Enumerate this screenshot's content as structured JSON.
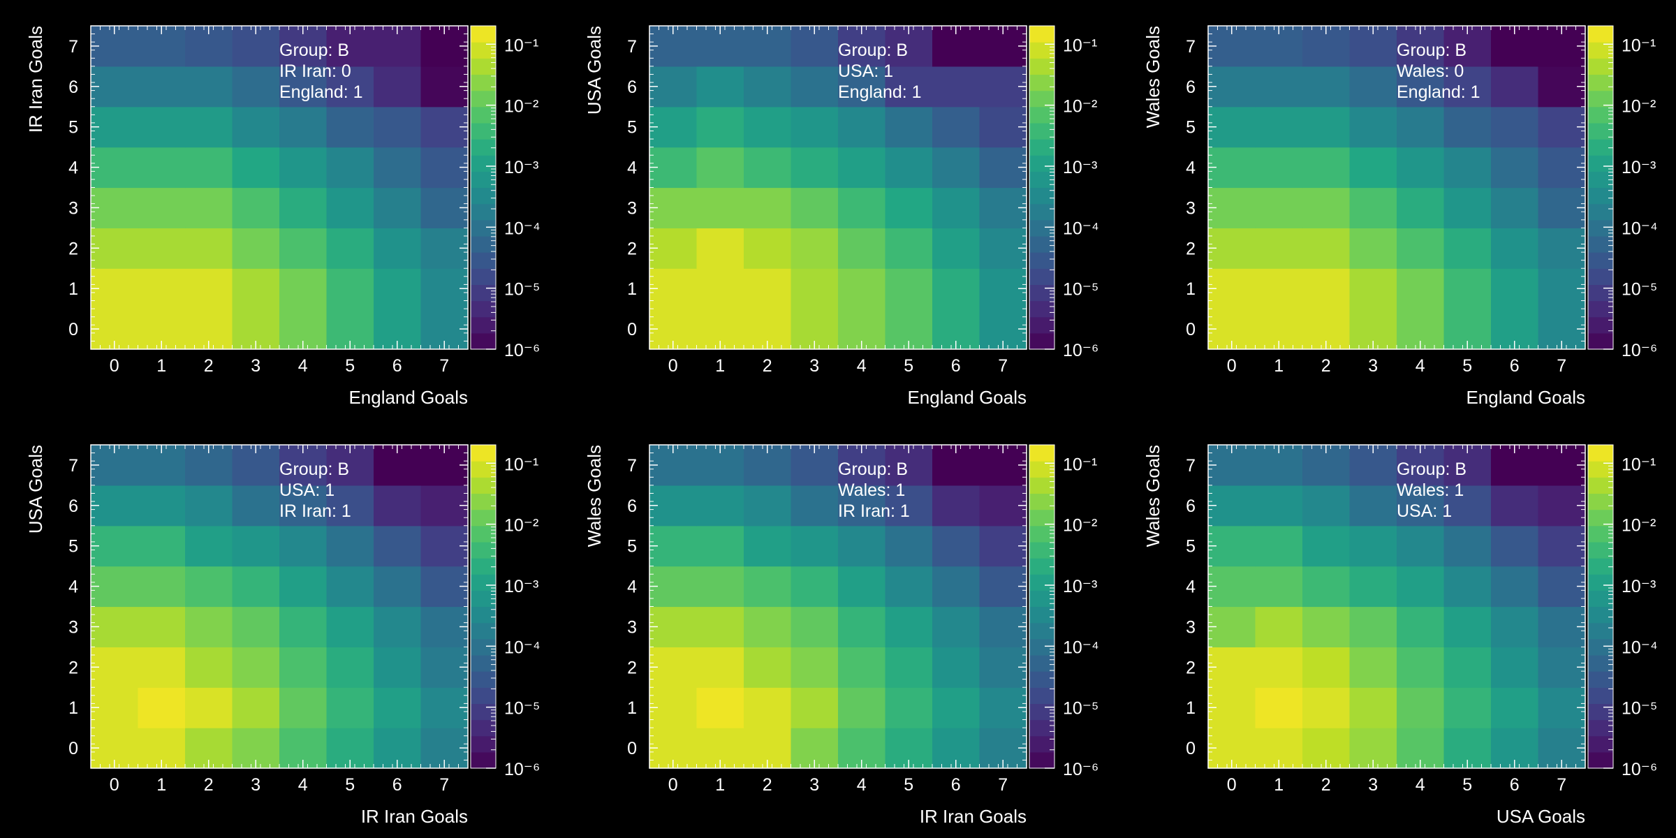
{
  "colors": {
    "background": "#000000",
    "text": "#ffffff",
    "colormap": "viridis"
  },
  "chart_data": [
    {
      "type": "heatmap",
      "xlabel": "England Goals",
      "ylabel": "IR Iran Goals",
      "x": [
        0,
        1,
        2,
        3,
        4,
        5,
        6,
        7
      ],
      "y": [
        0,
        1,
        2,
        3,
        4,
        5,
        6,
        7
      ],
      "xlim": [
        -0.5,
        7.5
      ],
      "ylim": [
        -0.5,
        7.5
      ],
      "x_tick_labels": [
        "0",
        "1",
        "2",
        "3",
        "4",
        "5",
        "6",
        "7"
      ],
      "y_tick_labels": [
        "0",
        "1",
        "2",
        "3",
        "4",
        "5",
        "6",
        "7"
      ],
      "color_scale": "log",
      "zlim": [
        1e-06,
        0.2
      ],
      "colorbar_tick_labels": [
        "10⁻⁶",
        "10⁻⁵",
        "10⁻⁴",
        "10⁻³",
        "10⁻²",
        "10⁻¹"
      ],
      "annotation": [
        "Group: B",
        "IR Iran: 0",
        "England: 1"
      ],
      "z": [
        [
          0.1,
          0.1,
          0.1,
          0.04,
          0.015,
          0.004,
          0.001,
          0.0003
        ],
        [
          0.1,
          0.1,
          0.1,
          0.04,
          0.015,
          0.004,
          0.001,
          0.0003
        ],
        [
          0.04,
          0.04,
          0.04,
          0.015,
          0.006,
          0.002,
          0.0005,
          0.0002
        ],
        [
          0.015,
          0.015,
          0.015,
          0.006,
          0.002,
          0.0006,
          0.0002,
          6e-05
        ],
        [
          0.004,
          0.004,
          0.004,
          0.0015,
          0.0006,
          0.00025,
          8e-05,
          3e-05
        ],
        [
          0.0008,
          0.0008,
          0.0008,
          0.0003,
          0.00015,
          5e-05,
          3e-05,
          1.2e-05
        ],
        [
          0.00015,
          0.00015,
          0.00015,
          8e-05,
          3e-05,
          1.2e-05,
          5e-06,
          1.2e-06
        ],
        [
          4e-05,
          4e-05,
          3e-05,
          2e-05,
          8e-06,
          3e-06,
          3e-06,
          1e-06
        ]
      ]
    },
    {
      "type": "heatmap",
      "xlabel": "England Goals",
      "ylabel": "USA Goals",
      "x": [
        0,
        1,
        2,
        3,
        4,
        5,
        6,
        7
      ],
      "y": [
        0,
        1,
        2,
        3,
        4,
        5,
        6,
        7
      ],
      "xlim": [
        -0.5,
        7.5
      ],
      "ylim": [
        -0.5,
        7.5
      ],
      "x_tick_labels": [
        "0",
        "1",
        "2",
        "3",
        "4",
        "5",
        "6",
        "7"
      ],
      "y_tick_labels": [
        "0",
        "1",
        "2",
        "3",
        "4",
        "5",
        "6",
        "7"
      ],
      "color_scale": "log",
      "zlim": [
        1e-06,
        0.2
      ],
      "colorbar_tick_labels": [
        "10⁻⁶",
        "10⁻⁵",
        "10⁻⁴",
        "10⁻³",
        "10⁻²",
        "10⁻¹"
      ],
      "annotation": [
        "Group: B",
        "USA: 1",
        "England: 1"
      ],
      "z": [
        [
          0.1,
          0.1,
          0.1,
          0.04,
          0.02,
          0.008,
          0.002,
          0.0005
        ],
        [
          0.1,
          0.1,
          0.1,
          0.04,
          0.02,
          0.008,
          0.002,
          0.0005
        ],
        [
          0.05,
          0.1,
          0.05,
          0.03,
          0.01,
          0.004,
          0.001,
          0.0003
        ],
        [
          0.02,
          0.02,
          0.02,
          0.01,
          0.004,
          0.0015,
          0.0005,
          0.00015
        ],
        [
          0.004,
          0.008,
          0.004,
          0.002,
          0.001,
          0.0004,
          0.00015,
          5e-05
        ],
        [
          0.001,
          0.002,
          0.001,
          0.0006,
          0.0003,
          0.0001,
          4e-05,
          1.5e-05
        ],
        [
          0.0002,
          0.0004,
          0.0002,
          0.0001,
          5e-05,
          1e-05,
          1e-05,
          1e-05
        ],
        [
          5e-05,
          5e-05,
          5e-05,
          3e-05,
          1e-05,
          5e-06,
          1e-06,
          1e-06
        ]
      ]
    },
    {
      "type": "heatmap",
      "xlabel": "England Goals",
      "ylabel": "Wales Goals",
      "x": [
        0,
        1,
        2,
        3,
        4,
        5,
        6,
        7
      ],
      "y": [
        0,
        1,
        2,
        3,
        4,
        5,
        6,
        7
      ],
      "xlim": [
        -0.5,
        7.5
      ],
      "ylim": [
        -0.5,
        7.5
      ],
      "x_tick_labels": [
        "0",
        "1",
        "2",
        "3",
        "4",
        "5",
        "6",
        "7"
      ],
      "y_tick_labels": [
        "0",
        "1",
        "2",
        "3",
        "4",
        "5",
        "6",
        "7"
      ],
      "color_scale": "log",
      "zlim": [
        1e-06,
        0.2
      ],
      "colorbar_tick_labels": [
        "10⁻⁶",
        "10⁻⁵",
        "10⁻⁴",
        "10⁻³",
        "10⁻²",
        "10⁻¹"
      ],
      "annotation": [
        "Group: B",
        "Wales: 0",
        "England: 1"
      ],
      "z": [
        [
          0.1,
          0.1,
          0.1,
          0.04,
          0.015,
          0.004,
          0.001,
          0.0003
        ],
        [
          0.1,
          0.1,
          0.1,
          0.04,
          0.015,
          0.004,
          0.001,
          0.0003
        ],
        [
          0.04,
          0.04,
          0.04,
          0.015,
          0.006,
          0.002,
          0.0005,
          0.0002
        ],
        [
          0.015,
          0.015,
          0.015,
          0.006,
          0.002,
          0.0006,
          0.0002,
          6e-05
        ],
        [
          0.004,
          0.004,
          0.004,
          0.0015,
          0.0006,
          0.00025,
          8e-05,
          3e-05
        ],
        [
          0.0008,
          0.0008,
          0.0008,
          0.0003,
          0.00015,
          5e-05,
          3e-05,
          1.2e-05
        ],
        [
          0.00015,
          0.00015,
          0.00015,
          8e-05,
          3e-05,
          1.2e-05,
          5e-06,
          1.2e-06
        ],
        [
          4e-05,
          4e-05,
          3e-05,
          2e-05,
          8e-06,
          3e-06,
          1e-06,
          1e-06
        ]
      ]
    },
    {
      "type": "heatmap",
      "xlabel": "IR Iran Goals",
      "ylabel": "USA Goals",
      "x": [
        0,
        1,
        2,
        3,
        4,
        5,
        6,
        7
      ],
      "y": [
        0,
        1,
        2,
        3,
        4,
        5,
        6,
        7
      ],
      "xlim": [
        -0.5,
        7.5
      ],
      "ylim": [
        -0.5,
        7.5
      ],
      "x_tick_labels": [
        "0",
        "1",
        "2",
        "3",
        "4",
        "5",
        "6",
        "7"
      ],
      "y_tick_labels": [
        "0",
        "1",
        "2",
        "3",
        "4",
        "5",
        "6",
        "7"
      ],
      "color_scale": "log",
      "zlim": [
        1e-06,
        0.2
      ],
      "colorbar_tick_labels": [
        "10⁻⁶",
        "10⁻⁵",
        "10⁻⁴",
        "10⁻³",
        "10⁻²",
        "10⁻¹"
      ],
      "annotation": [
        "Group: B",
        "USA: 1",
        "IR Iran: 1"
      ],
      "z": [
        [
          0.1,
          0.1,
          0.04,
          0.02,
          0.006,
          0.002,
          0.0006,
          0.0002
        ],
        [
          0.1,
          0.15,
          0.1,
          0.04,
          0.01,
          0.003,
          0.001,
          0.0003
        ],
        [
          0.1,
          0.1,
          0.04,
          0.02,
          0.006,
          0.002,
          0.0005,
          0.00015
        ],
        [
          0.04,
          0.04,
          0.02,
          0.01,
          0.003,
          0.001,
          0.0003,
          0.0001
        ],
        [
          0.01,
          0.01,
          0.006,
          0.003,
          0.001,
          0.0003,
          0.0001,
          3e-05
        ],
        [
          0.003,
          0.003,
          0.001,
          0.0006,
          0.0003,
          0.0001,
          3e-05,
          1e-05
        ],
        [
          0.0005,
          0.0005,
          0.0003,
          0.0001,
          5e-05,
          2e-05,
          5e-06,
          3e-06
        ],
        [
          0.0001,
          0.0001,
          6e-05,
          3e-05,
          1e-05,
          5e-06,
          1e-06,
          1e-06
        ]
      ]
    },
    {
      "type": "heatmap",
      "xlabel": "IR Iran Goals",
      "ylabel": "Wales Goals",
      "x": [
        0,
        1,
        2,
        3,
        4,
        5,
        6,
        7
      ],
      "y": [
        0,
        1,
        2,
        3,
        4,
        5,
        6,
        7
      ],
      "xlim": [
        -0.5,
        7.5
      ],
      "ylim": [
        -0.5,
        7.5
      ],
      "x_tick_labels": [
        "0",
        "1",
        "2",
        "3",
        "4",
        "5",
        "6",
        "7"
      ],
      "y_tick_labels": [
        "0",
        "1",
        "2",
        "3",
        "4",
        "5",
        "6",
        "7"
      ],
      "color_scale": "log",
      "zlim": [
        1e-06,
        0.2
      ],
      "colorbar_tick_labels": [
        "10⁻⁶",
        "10⁻⁵",
        "10⁻⁴",
        "10⁻³",
        "10⁻²",
        "10⁻¹"
      ],
      "annotation": [
        "Group: B",
        "Wales: 1",
        "IR Iran: 1"
      ],
      "z": [
        [
          0.1,
          0.1,
          0.1,
          0.02,
          0.006,
          0.002,
          0.0006,
          0.0002
        ],
        [
          0.1,
          0.15,
          0.1,
          0.04,
          0.01,
          0.003,
          0.001,
          0.0003
        ],
        [
          0.1,
          0.1,
          0.04,
          0.02,
          0.006,
          0.002,
          0.0005,
          0.00015
        ],
        [
          0.04,
          0.04,
          0.02,
          0.01,
          0.003,
          0.001,
          0.0003,
          0.0001
        ],
        [
          0.01,
          0.01,
          0.006,
          0.003,
          0.001,
          0.0003,
          0.0001,
          3e-05
        ],
        [
          0.003,
          0.003,
          0.001,
          0.0006,
          0.0003,
          0.0001,
          3e-05,
          1e-05
        ],
        [
          0.0005,
          0.0005,
          0.0003,
          0.0001,
          5e-05,
          2e-05,
          5e-06,
          3e-06
        ],
        [
          0.0001,
          0.0001,
          6e-05,
          3e-05,
          1e-05,
          5e-06,
          1e-06,
          1e-06
        ]
      ]
    },
    {
      "type": "heatmap",
      "xlabel": "USA Goals",
      "ylabel": "Wales Goals",
      "x": [
        0,
        1,
        2,
        3,
        4,
        5,
        6,
        7
      ],
      "y": [
        0,
        1,
        2,
        3,
        4,
        5,
        6,
        7
      ],
      "xlim": [
        -0.5,
        7.5
      ],
      "ylim": [
        -0.5,
        7.5
      ],
      "x_tick_labels": [
        "0",
        "1",
        "2",
        "3",
        "4",
        "5",
        "6",
        "7"
      ],
      "y_tick_labels": [
        "0",
        "1",
        "2",
        "3",
        "4",
        "5",
        "6",
        "7"
      ],
      "color_scale": "log",
      "zlim": [
        1e-06,
        0.2
      ],
      "colorbar_tick_labels": [
        "10⁻⁶",
        "10⁻⁵",
        "10⁻⁴",
        "10⁻³",
        "10⁻²",
        "10⁻¹"
      ],
      "annotation": [
        "Group: B",
        "Wales: 1",
        "USA: 1"
      ],
      "z": [
        [
          0.1,
          0.1,
          0.06,
          0.03,
          0.008,
          0.002,
          0.0006,
          0.0002
        ],
        [
          0.1,
          0.15,
          0.1,
          0.04,
          0.01,
          0.003,
          0.001,
          0.0003
        ],
        [
          0.1,
          0.1,
          0.06,
          0.02,
          0.006,
          0.002,
          0.0005,
          0.00015
        ],
        [
          0.02,
          0.04,
          0.02,
          0.01,
          0.003,
          0.001,
          0.0003,
          0.0001
        ],
        [
          0.008,
          0.008,
          0.004,
          0.002,
          0.001,
          0.0003,
          0.0001,
          3e-05
        ],
        [
          0.003,
          0.003,
          0.001,
          0.0006,
          0.0003,
          0.0001,
          3e-05,
          1e-05
        ],
        [
          0.0005,
          0.0005,
          0.0003,
          0.0001,
          5e-05,
          2e-05,
          5e-06,
          3e-06
        ],
        [
          0.0001,
          0.0001,
          6e-05,
          3e-05,
          1e-05,
          5e-06,
          1e-06,
          1e-06
        ]
      ]
    }
  ]
}
